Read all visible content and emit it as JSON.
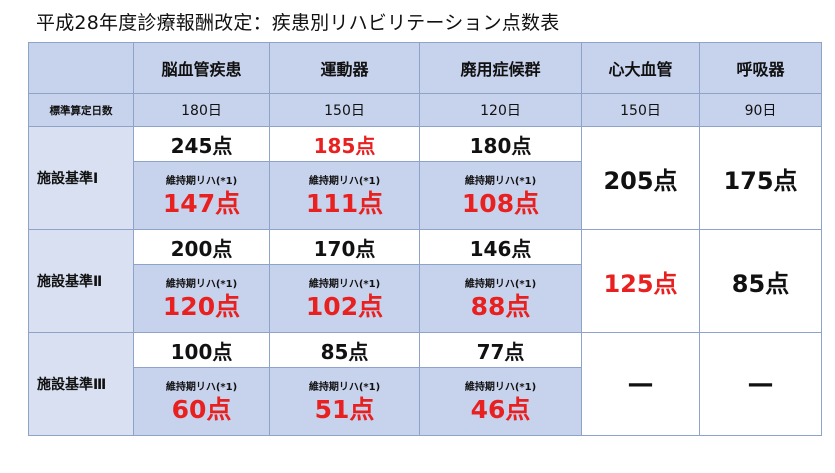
{
  "title": "平成28年度診療報酬改定：疾患別リハビリテーション点数表",
  "colors": {
    "header_bg": "#c7d2ec",
    "red": "#e8201f",
    "border": "#8fa3c8"
  },
  "headers": [
    "",
    "脳血管疾患",
    "運動器",
    "廃用症候群",
    "心大血管",
    "呼吸器"
  ],
  "days": {
    "label": "標準算定日数",
    "values": [
      "180日",
      "150日",
      "120日",
      "150日",
      "90日"
    ]
  },
  "sub_label": "維持期リハ(*1)",
  "rows": [
    {
      "label": "施設基準Ⅰ",
      "top": [
        "245点",
        "185点",
        "180点"
      ],
      "sub": [
        "147点",
        "111点",
        "108点"
      ],
      "cardiac": "205点",
      "respiratory": "175点"
    },
    {
      "label": "施設基準Ⅱ",
      "top": [
        "200点",
        "170点",
        "146点"
      ],
      "sub": [
        "120点",
        "102点",
        "88点"
      ],
      "cardiac": "125点",
      "respiratory": "85点"
    },
    {
      "label": "施設基準Ⅲ",
      "top": [
        "100点",
        "85点",
        "77点"
      ],
      "sub": [
        "60点",
        "51点",
        "46点"
      ],
      "cardiac": "—",
      "respiratory": "—"
    }
  ]
}
